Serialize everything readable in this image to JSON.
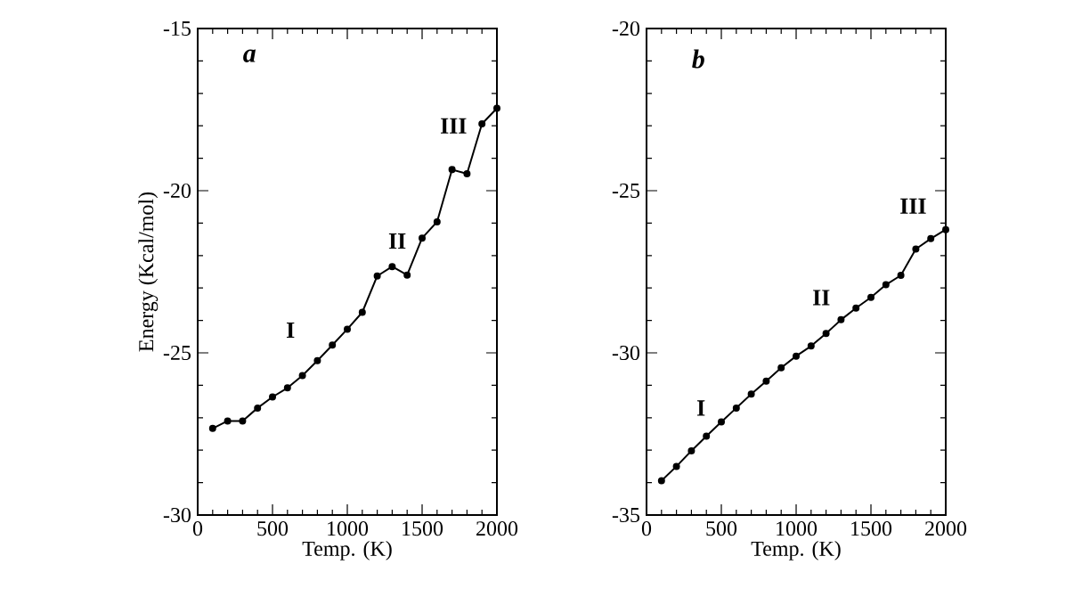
{
  "chart_data": [
    {
      "type": "line",
      "xlabel": "Temp. (K)",
      "ylabel": "Energy (Kcal/mol)",
      "x": [
        100,
        200,
        300,
        400,
        500,
        600,
        700,
        800,
        900,
        1000,
        1100,
        1200,
        1300,
        1400,
        1500,
        1600,
        1700,
        1800,
        1900,
        2000
      ],
      "series": [
        {
          "color": "#000000",
          "values": [
            -27.33,
            -27.1,
            -27.1,
            -26.7,
            -26.36,
            -26.08,
            -25.7,
            -25.24,
            -24.76,
            -24.27,
            -23.75,
            -22.63,
            -22.34,
            -22.6,
            -21.46,
            -20.96,
            -19.35,
            -19.48,
            -17.94,
            -17.46
          ]
        }
      ],
      "xlim": [
        0,
        2000
      ],
      "ylim": [
        -30,
        -15
      ],
      "xticks": [
        0,
        500,
        1000,
        1500,
        2000
      ],
      "yticks": [
        -30,
        -25,
        -20,
        -15
      ],
      "marker": "circle",
      "line_style": "solid",
      "grid": false,
      "annotations": [
        "a",
        "I",
        "II",
        "III"
      ]
    },
    {
      "type": "line",
      "xlabel": "Temp. (K)",
      "x": [
        100,
        200,
        300,
        400,
        500,
        600,
        700,
        800,
        900,
        1000,
        1100,
        1200,
        1300,
        1400,
        1500,
        1600,
        1700,
        1800,
        1900,
        2000
      ],
      "series": [
        {
          "color": "#000000",
          "values": [
            -33.94,
            -33.5,
            -33.02,
            -32.57,
            -32.13,
            -31.7,
            -31.27,
            -30.87,
            -30.46,
            -30.1,
            -29.79,
            -29.4,
            -28.98,
            -28.62,
            -28.29,
            -27.9,
            -27.61,
            -26.8,
            -26.48,
            -26.2
          ]
        }
      ],
      "xlim": [
        0,
        2000
      ],
      "ylim": [
        -35,
        -20
      ],
      "xticks": [
        0,
        500,
        1000,
        1500,
        2000
      ],
      "yticks": [
        -35,
        -30,
        -25,
        -20
      ],
      "marker": "circle",
      "line_style": "solid",
      "grid": false,
      "annotations": [
        "b",
        "I",
        "II",
        "III"
      ]
    }
  ]
}
